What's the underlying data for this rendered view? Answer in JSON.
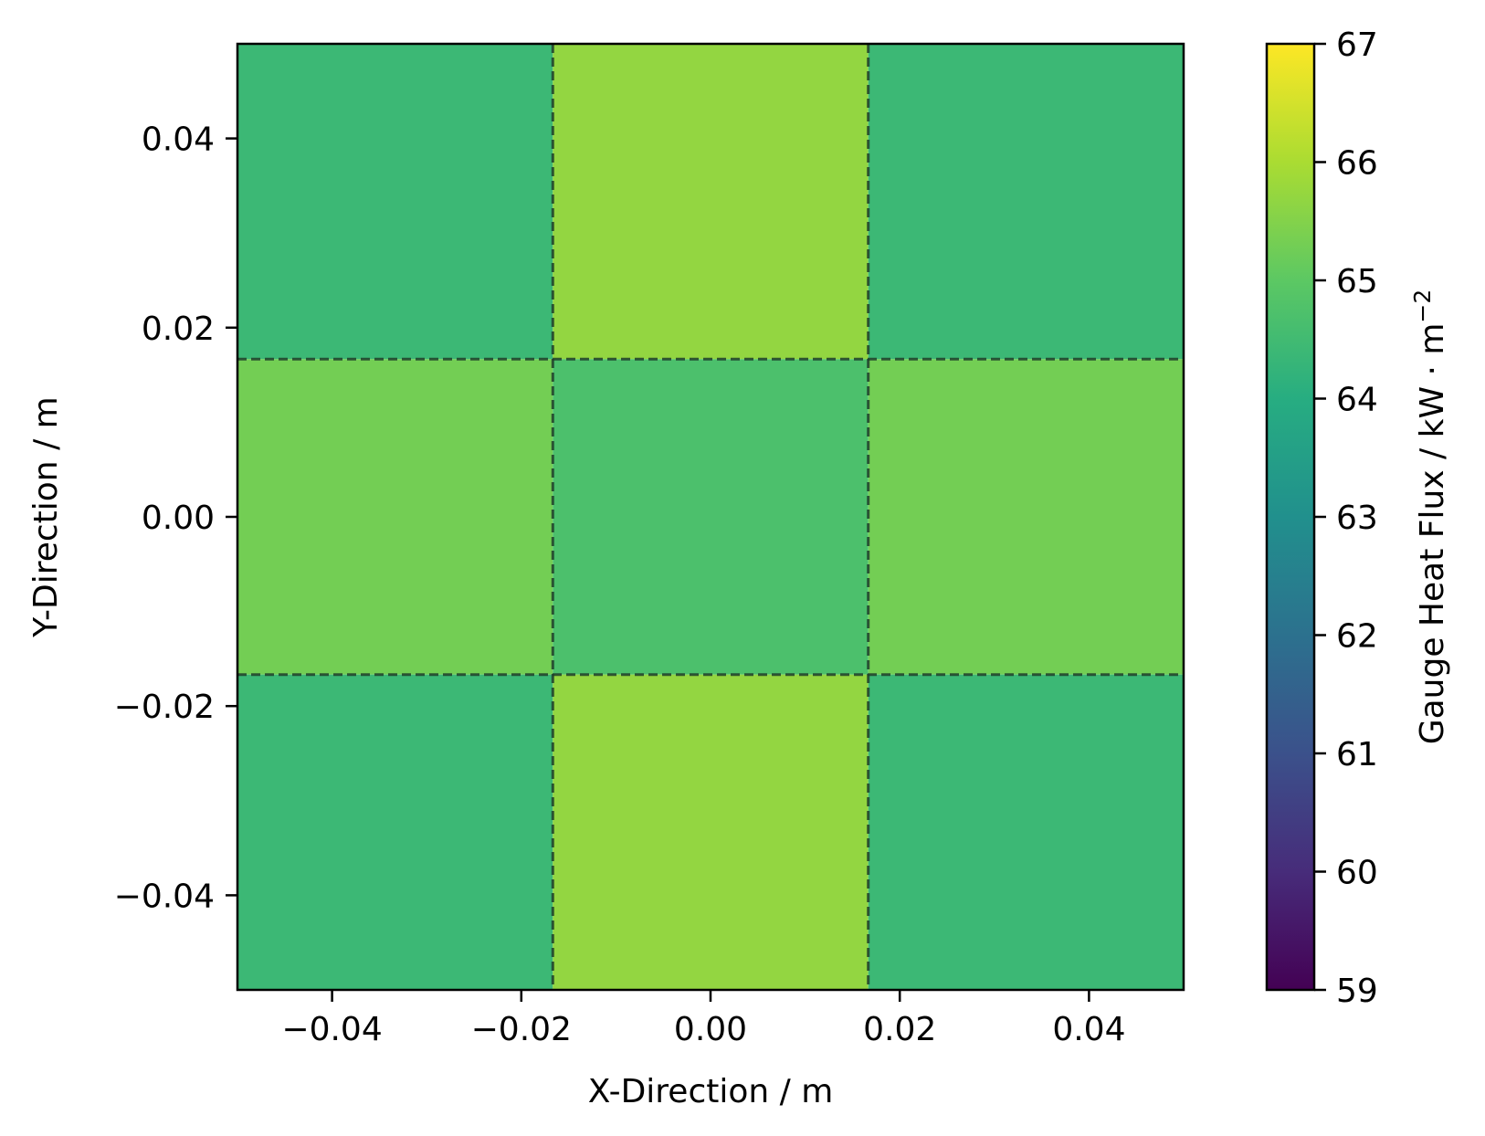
{
  "chart_data": {
    "type": "heatmap",
    "title": "",
    "xlabel": "X-Direction / m",
    "ylabel": "Y-Direction / m",
    "xlim": [
      -0.05,
      0.05
    ],
    "ylim": [
      -0.05,
      0.05
    ],
    "x_ticks": [
      -0.04,
      -0.02,
      0.0,
      0.02,
      0.04
    ],
    "x_tick_labels": [
      "−0.04",
      "−0.02",
      "0.00",
      "0.02",
      "0.04"
    ],
    "y_ticks": [
      -0.04,
      -0.02,
      0.0,
      0.02,
      0.04
    ],
    "y_tick_labels": [
      "−0.04",
      "−0.02",
      "0.00",
      "0.02",
      "0.04"
    ],
    "x_edges": [
      -0.05,
      -0.01667,
      0.01667,
      0.05
    ],
    "y_edges": [
      -0.05,
      -0.01667,
      0.01667,
      0.05
    ],
    "values": [
      [
        64.4,
        65.7,
        64.4
      ],
      [
        65.3,
        64.7,
        65.3
      ],
      [
        64.4,
        65.7,
        64.4
      ]
    ],
    "values_row_order": "top-to-bottom",
    "cell_borders": "dashed",
    "grid": false,
    "colormap": "viridis",
    "colorbar": {
      "label": "Gauge Heat Flux / kW · m",
      "label_superscript": "−2",
      "min": 59,
      "max": 67,
      "ticks": [
        59,
        60,
        61,
        62,
        63,
        64,
        65,
        66,
        67
      ],
      "tick_labels": [
        "59",
        "60",
        "61",
        "62",
        "63",
        "64",
        "65",
        "66",
        "67"
      ],
      "placement": "right"
    }
  }
}
